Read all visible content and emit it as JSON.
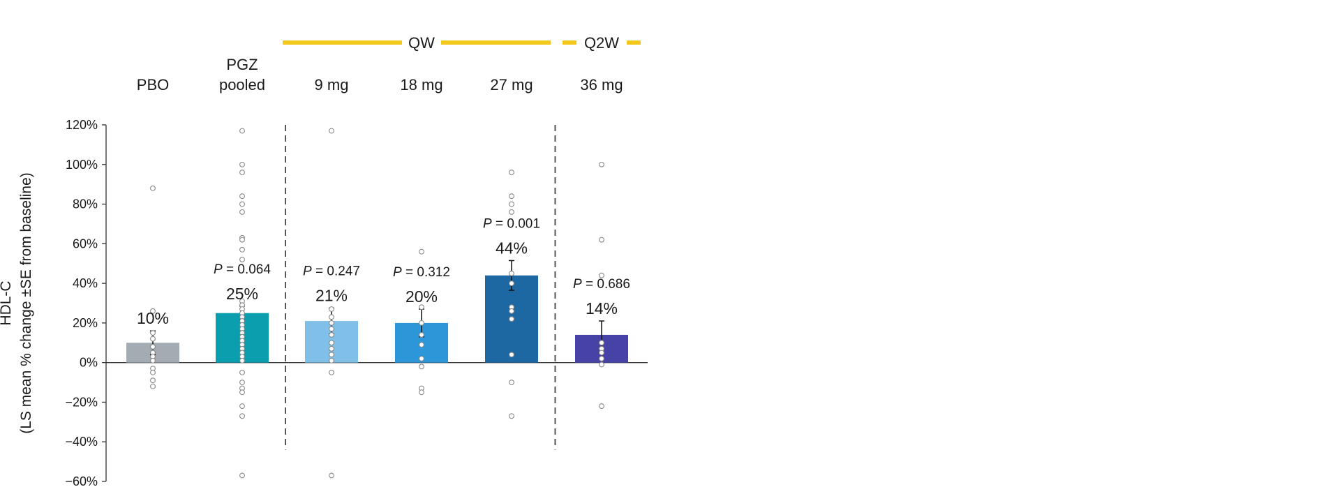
{
  "chart_data": {
    "type": "bar",
    "ylabel_lines": [
      "HDL-C",
      "(LS mean % change ±SE from baseline)"
    ],
    "ylim": [
      -60,
      120
    ],
    "yticks": [
      120,
      100,
      80,
      60,
      40,
      20,
      0,
      -20,
      -40,
      -60
    ],
    "ytick_labels": [
      "120%",
      "100%",
      "80%",
      "60%",
      "40%",
      "20%",
      "0%",
      "−20%",
      "−40%",
      "−60%"
    ],
    "categories": [
      {
        "label_lines": [
          "PBO"
        ]
      },
      {
        "label_lines": [
          "PGZ",
          "pooled"
        ]
      },
      {
        "label_lines": [
          "9 mg"
        ]
      },
      {
        "label_lines": [
          "18 mg"
        ]
      },
      {
        "label_lines": [
          "27 mg"
        ]
      },
      {
        "label_lines": [
          "36 mg"
        ]
      }
    ],
    "groups": [
      {
        "label": "QW",
        "color": "#f2c81d",
        "style": "solid",
        "categories": [
          2,
          4
        ]
      },
      {
        "label": "Q2W",
        "color": "#f2c81d",
        "style": "dashed",
        "categories": [
          5,
          5
        ]
      }
    ],
    "separators_after_category": [
      1,
      4
    ],
    "bars": [
      {
        "value": 10,
        "label": "10%",
        "p_label": "",
        "se": 6,
        "color": "#a3acb3",
        "points": [
          88,
          26,
          15,
          12,
          8,
          5,
          3,
          1,
          -3,
          -5,
          -9,
          -12
        ]
      },
      {
        "value": 25,
        "label": "25%",
        "p_label": "P = 0.064",
        "se": 3.5,
        "color": "#0b9eae",
        "points": [
          117,
          100,
          96,
          84,
          80,
          76,
          63,
          62,
          57,
          52,
          31,
          29,
          27,
          25,
          23,
          21,
          19,
          17,
          15,
          13,
          11,
          9,
          7,
          5,
          3,
          1,
          -5,
          -10,
          -13,
          -15,
          -22,
          -27,
          -57
        ]
      },
      {
        "value": 21,
        "label": "21%",
        "p_label": "P = 0.247",
        "se": 6.5,
        "color": "#80c0e8",
        "points": [
          117,
          27,
          23,
          20,
          17,
          14,
          10,
          7,
          4,
          1,
          -5,
          -57
        ]
      },
      {
        "value": 20,
        "label": "20%",
        "p_label": "P = 0.312",
        "se": 7,
        "color": "#2b97d8",
        "points": [
          56,
          28,
          20,
          14,
          9,
          2,
          -2,
          -13,
          -15
        ]
      },
      {
        "value": 44,
        "label": "44%",
        "p_label": "P = 0.001",
        "se": 7.5,
        "color": "#1d68a2",
        "points": [
          96,
          84,
          80,
          76,
          45,
          40,
          28,
          26,
          22,
          4,
          -10,
          -27
        ]
      },
      {
        "value": 14,
        "label": "14%",
        "p_label": "P = 0.686",
        "se": 7,
        "color": "#4743a6",
        "points": [
          100,
          62,
          44,
          10,
          7,
          5,
          2,
          -1,
          -22
        ]
      }
    ]
  }
}
